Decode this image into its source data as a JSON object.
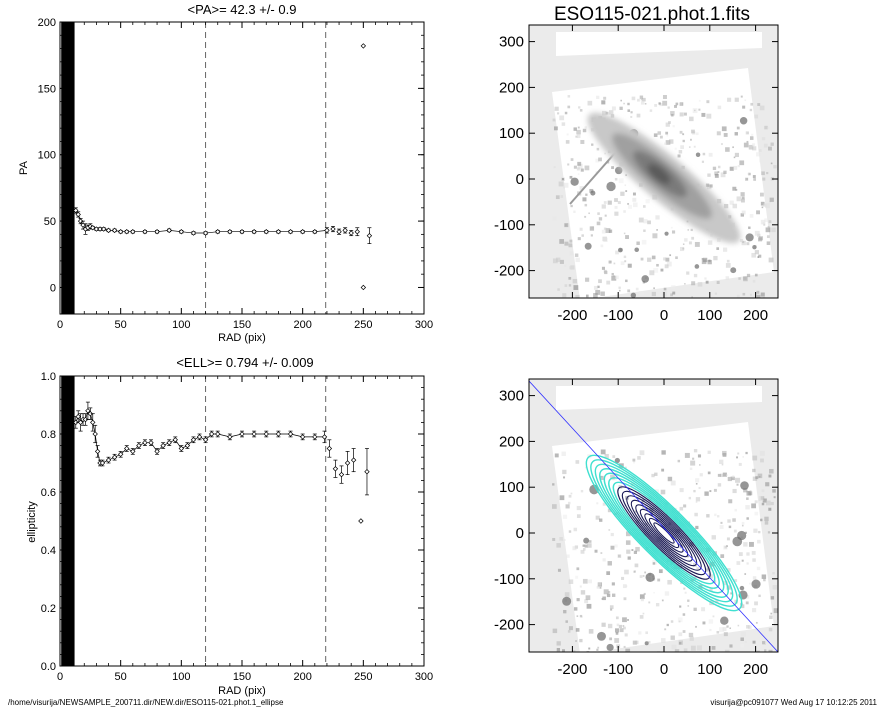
{
  "chart_data": [
    {
      "type": "scatter",
      "title": "<PA>=  42.3 +/-   0.9",
      "xlabel": "RAD (pix)",
      "ylabel": "PA",
      "xlim": [
        0,
        300
      ],
      "ylim": [
        -20,
        200
      ],
      "xticks": [
        "0",
        "50",
        "100",
        "150",
        "200",
        "250",
        "300"
      ],
      "yticks": [
        "0",
        "50",
        "100",
        "150",
        "200"
      ],
      "vlines": [
        120,
        219
      ],
      "black_band": [
        1,
        12
      ],
      "x": [
        13,
        15,
        17,
        19,
        21,
        23,
        25,
        27,
        30,
        33,
        36,
        40,
        45,
        50,
        55,
        60,
        70,
        80,
        90,
        100,
        110,
        120,
        130,
        140,
        150,
        160,
        170,
        180,
        190,
        200,
        210,
        220,
        225,
        230,
        235,
        240,
        245,
        250,
        255
      ],
      "values": [
        58,
        55,
        50,
        47,
        44,
        45,
        46,
        45,
        44,
        44,
        44,
        43,
        43,
        42,
        42,
        42,
        42,
        42,
        43,
        42,
        41,
        41,
        42,
        42,
        42,
        42,
        42,
        42,
        42,
        42,
        42,
        43,
        44,
        42,
        43,
        41,
        42,
        0,
        39
      ],
      "errors": [
        2,
        2,
        2,
        3,
        4,
        2,
        2,
        1,
        1,
        1,
        1,
        1,
        1,
        1,
        1,
        1,
        1,
        1,
        1,
        1,
        1,
        1,
        1,
        1,
        1,
        1,
        1,
        1,
        1,
        1,
        1,
        2,
        2,
        2,
        2,
        2,
        3,
        0,
        6
      ],
      "outliers": [
        {
          "x": 250,
          "y": 182
        }
      ]
    },
    {
      "type": "scatter",
      "title": "<ELL>= 0.794 +/-  0.009",
      "xlabel": "RAD (pix)",
      "ylabel": "ellipticity",
      "xlim": [
        0,
        300
      ],
      "ylim": [
        0,
        1
      ],
      "xticks": [
        "0",
        "50",
        "100",
        "150",
        "200",
        "250",
        "300"
      ],
      "yticks": [
        "0.0",
        "0.2",
        "0.4",
        "0.6",
        "0.8",
        "1.0"
      ],
      "vlines": [
        120,
        219
      ],
      "black_band": [
        1,
        12
      ],
      "x": [
        13,
        15,
        17,
        19,
        21,
        23,
        25,
        27,
        29,
        31,
        33,
        35,
        40,
        45,
        50,
        55,
        60,
        65,
        70,
        75,
        80,
        85,
        90,
        95,
        100,
        105,
        110,
        115,
        120,
        125,
        130,
        140,
        150,
        160,
        170,
        180,
        190,
        200,
        210,
        218,
        222,
        227,
        232,
        237,
        242,
        248,
        253
      ],
      "values": [
        0.84,
        0.86,
        0.84,
        0.85,
        0.85,
        0.88,
        0.87,
        0.84,
        0.8,
        0.74,
        0.7,
        0.7,
        0.71,
        0.72,
        0.73,
        0.75,
        0.74,
        0.76,
        0.77,
        0.77,
        0.74,
        0.76,
        0.77,
        0.78,
        0.75,
        0.76,
        0.78,
        0.79,
        0.78,
        0.8,
        0.8,
        0.79,
        0.8,
        0.8,
        0.8,
        0.8,
        0.8,
        0.79,
        0.79,
        0.79,
        0.75,
        0.68,
        0.66,
        0.7,
        0.71,
        0.5,
        0.67
      ],
      "errors": [
        0.02,
        0.02,
        0.03,
        0.02,
        0.02,
        0.03,
        0.02,
        0.03,
        0.03,
        0.02,
        0.01,
        0.01,
        0.01,
        0.01,
        0.01,
        0.01,
        0.01,
        0.01,
        0.01,
        0.01,
        0.01,
        0.01,
        0.01,
        0.01,
        0.01,
        0.01,
        0.01,
        0.01,
        0.01,
        0.01,
        0.01,
        0.01,
        0.01,
        0.01,
        0.01,
        0.01,
        0.01,
        0.01,
        0.01,
        0.02,
        0.03,
        0.03,
        0.03,
        0.04,
        0.04,
        0.0,
        0.08
      ]
    }
  ],
  "image_panels": [
    {
      "title": "ESO115-021.phot.1.fits",
      "xticks": [
        "-200",
        "-100",
        "0",
        "100",
        "200"
      ],
      "yticks": [
        "-200",
        "-100",
        "0",
        "100",
        "200",
        "300"
      ],
      "xtick_values": [
        -200,
        -100,
        0,
        100,
        200
      ],
      "ytick_values": [
        -200,
        -100,
        0,
        100,
        200,
        300
      ]
    },
    {
      "title": "",
      "xticks": [
        "-200",
        "-100",
        "0",
        "100",
        "200"
      ],
      "yticks": [
        "-200",
        "-100",
        "0",
        "100",
        "200",
        "300"
      ],
      "xtick_values": [
        -200,
        -100,
        0,
        100,
        200
      ],
      "ytick_values": [
        -200,
        -100,
        0,
        100,
        200,
        300
      ],
      "contour_color": "#40e0d0",
      "line_color": "#3030ff"
    }
  ],
  "footer": {
    "path": "/home/visurija/NEWSAMPLE_200711.dir/NEW.dir/ESO115-021.phot.1_ellipse",
    "user_time": "visurija@pc091077  Wed Aug 17 10:12:25 2011"
  }
}
